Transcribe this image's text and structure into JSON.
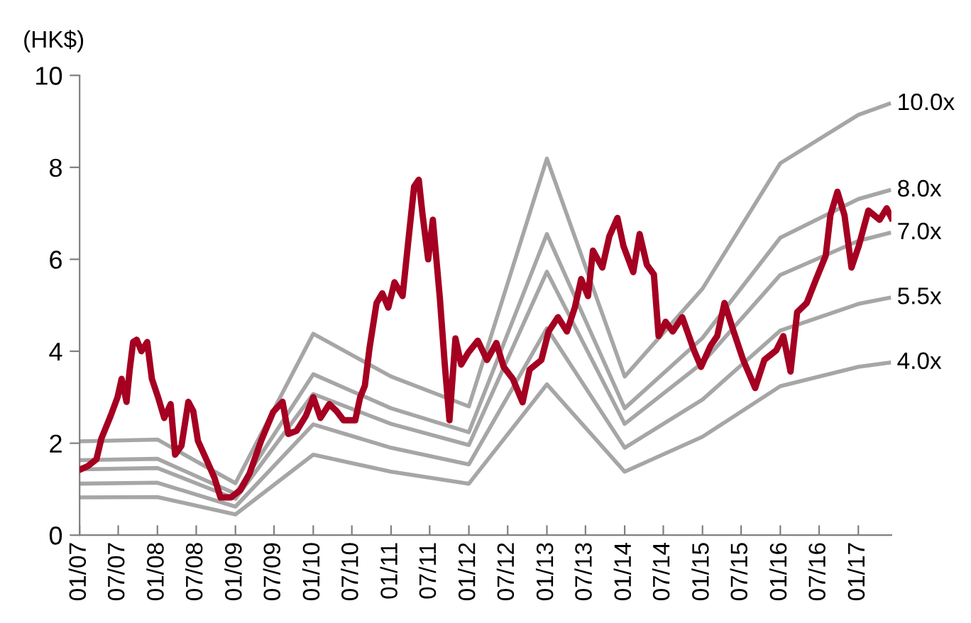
{
  "chart_data": {
    "type": "line",
    "ylabel": "(HK$)",
    "xlim": [
      "2007-01-01",
      "2017-06-05"
    ],
    "xticks": [
      {
        "value": "2007-01-01",
        "label": "01/07"
      },
      {
        "value": "2007-07-01",
        "label": "07/07"
      },
      {
        "value": "2008-01-01",
        "label": "01/08"
      },
      {
        "value": "2008-07-01",
        "label": "07/08"
      },
      {
        "value": "2009-01-01",
        "label": "01/09"
      },
      {
        "value": "2009-07-01",
        "label": "07/09"
      },
      {
        "value": "2010-01-01",
        "label": "01/10"
      },
      {
        "value": "2010-07-01",
        "label": "07/10"
      },
      {
        "value": "2011-01-01",
        "label": "01/11"
      },
      {
        "value": "2011-07-01",
        "label": "07/11"
      },
      {
        "value": "2012-01-01",
        "label": "01/12"
      },
      {
        "value": "2012-07-01",
        "label": "07/12"
      },
      {
        "value": "2013-01-01",
        "label": "01/13"
      },
      {
        "value": "2013-07-01",
        "label": "07/13"
      },
      {
        "value": "2014-01-01",
        "label": "01/14"
      },
      {
        "value": "2014-07-01",
        "label": "07/14"
      },
      {
        "value": "2015-01-01",
        "label": "01/15"
      },
      {
        "value": "2015-07-01",
        "label": "07/15"
      },
      {
        "value": "2016-01-01",
        "label": "01/16"
      },
      {
        "value": "2016-07-01",
        "label": "07/16"
      },
      {
        "value": "2017-01-01",
        "label": "01/17"
      }
    ],
    "ylim": [
      0,
      10
    ],
    "yticks": [
      0,
      2,
      4,
      6,
      8,
      10
    ],
    "grid": false,
    "legend": false,
    "marker": "none",
    "line_style": "solid",
    "series": [
      {
        "name": "10.0x",
        "color": "#a6a6a6",
        "x": [
          "2007-01-01",
          "2008-01-01",
          "2009-01-01",
          "2010-01-01",
          "2011-01-01",
          "2012-01-01",
          "2013-01-01",
          "2014-01-01",
          "2015-01-01",
          "2016-01-01",
          "2017-01-01",
          "2017-05-25"
        ],
        "values": [
          2.04,
          2.08,
          1.13,
          4.38,
          3.45,
          2.8,
          8.19,
          3.45,
          5.36,
          8.09,
          9.14,
          9.38
        ]
      },
      {
        "name": "8.0x",
        "color": "#a6a6a6",
        "x": [
          "2007-01-01",
          "2008-01-01",
          "2009-01-01",
          "2010-01-01",
          "2011-01-01",
          "2012-01-01",
          "2013-01-01",
          "2014-01-01",
          "2015-01-01",
          "2016-01-01",
          "2017-01-01",
          "2017-05-25"
        ],
        "values": [
          1.63,
          1.66,
          0.9,
          3.5,
          2.76,
          2.24,
          6.55,
          2.76,
          4.29,
          6.47,
          7.31,
          7.5
        ]
      },
      {
        "name": "7.0x",
        "color": "#a6a6a6",
        "x": [
          "2007-01-01",
          "2008-01-01",
          "2009-01-01",
          "2010-01-01",
          "2011-01-01",
          "2012-01-01",
          "2013-01-01",
          "2014-01-01",
          "2015-01-01",
          "2016-01-01",
          "2017-01-01",
          "2017-05-25"
        ],
        "values": [
          1.43,
          1.46,
          0.79,
          3.07,
          2.42,
          1.96,
          5.73,
          2.42,
          3.75,
          5.66,
          6.4,
          6.57
        ]
      },
      {
        "name": "5.5x",
        "color": "#a6a6a6",
        "x": [
          "2007-01-01",
          "2008-01-01",
          "2009-01-01",
          "2010-01-01",
          "2011-01-01",
          "2012-01-01",
          "2013-01-01",
          "2014-01-01",
          "2015-01-01",
          "2016-01-01",
          "2017-01-01",
          "2017-05-25"
        ],
        "values": [
          1.12,
          1.14,
          0.62,
          2.41,
          1.9,
          1.54,
          4.5,
          1.9,
          2.95,
          4.45,
          5.03,
          5.16
        ]
      },
      {
        "name": "4.0x",
        "color": "#a6a6a6",
        "x": [
          "2007-01-01",
          "2008-01-01",
          "2009-01-01",
          "2010-01-01",
          "2011-01-01",
          "2012-01-01",
          "2013-01-01",
          "2014-01-01",
          "2015-01-01",
          "2016-01-01",
          "2017-01-01",
          "2017-05-25"
        ],
        "values": [
          0.82,
          0.83,
          0.45,
          1.75,
          1.38,
          1.12,
          3.28,
          1.38,
          2.14,
          3.24,
          3.66,
          3.75
        ]
      },
      {
        "color": "#a50021",
        "x": [
          "2007-01-10",
          "2007-02-08",
          "2007-03-21",
          "2007-04-13",
          "2007-05-27",
          "2007-06-28",
          "2007-07-17",
          "2007-08-09",
          "2007-08-24",
          "2007-09-09",
          "2007-09-26",
          "2007-10-18",
          "2007-11-14",
          "2007-12-06",
          "2008-01-04",
          "2008-02-02",
          "2008-03-03",
          "2008-03-24",
          "2008-04-23",
          "2008-05-25",
          "2008-06-17",
          "2008-07-09",
          "2008-08-22",
          "2008-09-25",
          "2008-10-23",
          "2008-12-11",
          "2009-01-24",
          "2009-03-08",
          "2009-05-02",
          "2009-06-27",
          "2009-08-10",
          "2009-09-06",
          "2009-10-15",
          "2009-11-28",
          "2010-01-01",
          "2010-02-04",
          "2010-03-17",
          "2010-04-20",
          "2010-05-23",
          "2010-07-17",
          "2010-08-09",
          "2010-08-31",
          "2010-09-22",
          "2010-10-25",
          "2010-11-21",
          "2010-12-19",
          "2011-01-17",
          "2011-02-24",
          "2011-03-23",
          "2011-04-19",
          "2011-05-11",
          "2011-05-28",
          "2011-06-24",
          "2011-07-16",
          "2011-08-18",
          "2011-09-10",
          "2011-10-02",
          "2011-10-30",
          "2011-11-26",
          "2011-12-29",
          "2012-02-12",
          "2012-03-26",
          "2012-05-09",
          "2012-06-12",
          "2012-07-25",
          "2012-09-09",
          "2012-10-12",
          "2012-12-06",
          "2013-01-09",
          "2013-02-22",
          "2013-04-05",
          "2013-05-12",
          "2013-06-11",
          "2013-07-13",
          "2013-08-05",
          "2013-09-18",
          "2013-10-21",
          "2013-11-28",
          "2013-12-26",
          "2014-02-10",
          "2014-03-12",
          "2014-04-15",
          "2014-05-18",
          "2014-06-09",
          "2014-07-12",
          "2014-08-14",
          "2014-09-28",
          "2014-11-22",
          "2014-12-25",
          "2015-02-08",
          "2015-03-11",
          "2015-04-14",
          "2015-05-27",
          "2015-07-11",
          "2015-09-05",
          "2015-10-18",
          "2015-12-13",
          "2016-01-15",
          "2016-02-18",
          "2016-03-20",
          "2016-05-04",
          "2016-06-17",
          "2016-08-01",
          "2016-08-23",
          "2016-09-25",
          "2016-10-28",
          "2016-11-30",
          "2017-01-03",
          "2017-02-17",
          "2017-04-11",
          "2017-05-14",
          "2017-06-05"
        ],
        "values": [
          1.44,
          1.5,
          1.65,
          2.1,
          2.6,
          3.0,
          3.4,
          2.9,
          3.6,
          4.2,
          4.25,
          4.0,
          4.2,
          3.4,
          3.0,
          2.55,
          2.85,
          1.75,
          1.95,
          2.9,
          2.7,
          2.05,
          1.6,
          1.24,
          0.82,
          0.82,
          0.98,
          1.34,
          2.06,
          2.68,
          2.9,
          2.2,
          2.27,
          2.6,
          3.0,
          2.55,
          2.85,
          2.7,
          2.5,
          2.5,
          3.0,
          3.25,
          4.07,
          5.05,
          5.26,
          4.95,
          5.5,
          5.2,
          6.4,
          7.58,
          7.73,
          7.0,
          6.0,
          6.86,
          5.15,
          3.71,
          2.5,
          4.28,
          3.71,
          3.97,
          4.23,
          3.81,
          4.18,
          3.66,
          3.4,
          2.89,
          3.6,
          3.81,
          4.43,
          4.74,
          4.43,
          4.95,
          5.57,
          5.2,
          6.19,
          5.82,
          6.5,
          6.9,
          6.29,
          5.72,
          6.55,
          5.88,
          5.67,
          4.33,
          4.64,
          4.43,
          4.74,
          4.02,
          3.66,
          4.12,
          4.33,
          5.05,
          4.43,
          3.81,
          3.2,
          3.81,
          4.02,
          4.33,
          3.56,
          4.85,
          5.05,
          5.57,
          6.08,
          6.96,
          7.47,
          6.96,
          5.82,
          6.29,
          7.06,
          6.86,
          7.11,
          6.9
        ]
      }
    ]
  }
}
